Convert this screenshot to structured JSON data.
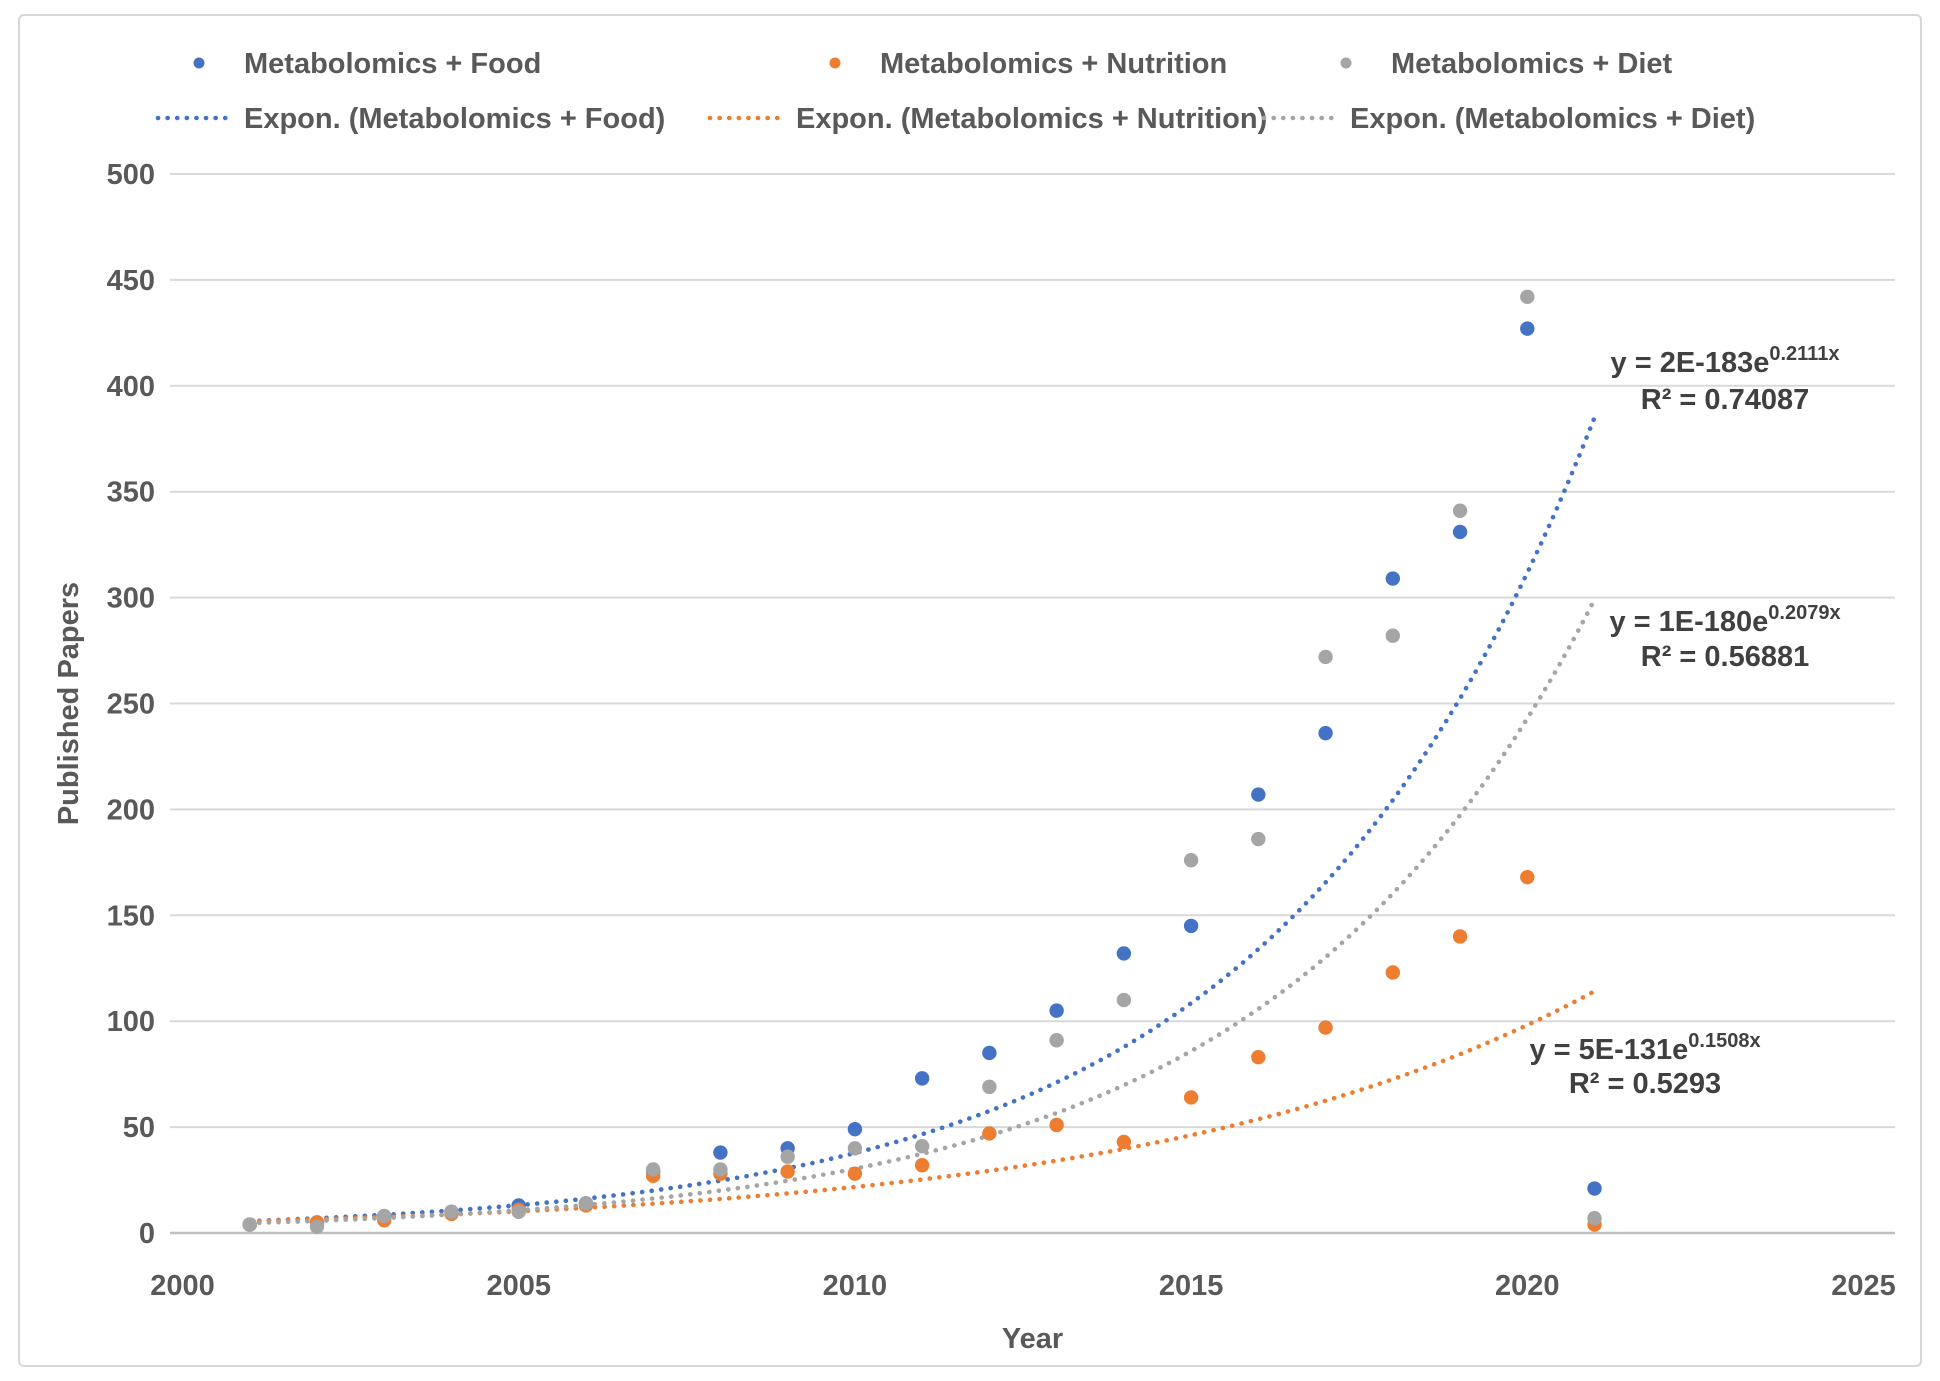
{
  "chart_data": {
    "type": "scatter",
    "title": "",
    "xlabel": "Year",
    "ylabel": "Published Papers",
    "xlim": [
      2000,
      2025
    ],
    "ylim": [
      0,
      500
    ],
    "x_ticks": [
      2000,
      2005,
      2010,
      2015,
      2020,
      2025
    ],
    "y_ticks": [
      0,
      50,
      100,
      150,
      200,
      250,
      300,
      350,
      400,
      450,
      500
    ],
    "grid": "horizontal",
    "legend_position": "top",
    "years": [
      2001,
      2002,
      2003,
      2004,
      2005,
      2006,
      2007,
      2008,
      2009,
      2010,
      2011,
      2012,
      2013,
      2014,
      2015,
      2016,
      2017,
      2018,
      2019,
      2020,
      2021
    ],
    "series": [
      {
        "name": "Metabolomics + Food",
        "color": "#4472C4",
        "values": [
          4,
          5,
          8,
          10,
          13,
          14,
          29,
          38,
          40,
          49,
          73,
          85,
          105,
          132,
          145,
          207,
          236,
          309,
          331,
          427,
          21
        ]
      },
      {
        "name": "Metabolomics + Nutrition",
        "color": "#ED7D31",
        "values": [
          4,
          5,
          6,
          9,
          11,
          13,
          27,
          28,
          29,
          28,
          32,
          47,
          51,
          43,
          64,
          83,
          97,
          123,
          140,
          168,
          4
        ]
      },
      {
        "name": "Metabolomics + Diet",
        "color": "#A5A5A5",
        "values": [
          4,
          3,
          8,
          10,
          10,
          14,
          30,
          30,
          36,
          40,
          41,
          69,
          91,
          110,
          176,
          186,
          272,
          282,
          341,
          442,
          7
        ]
      }
    ],
    "trendlines": [
      {
        "name": "Expon. (Metabolomics + Food)",
        "color": "#4472C4",
        "a": 2e-183,
        "b": 0.2111,
        "eq_base": "y = 2E-183e",
        "eq_exp": "0.2111x",
        "r2": "R² = 0.74087"
      },
      {
        "name": "Expon. (Metabolomics + Nutrition)",
        "color": "#ED7D31",
        "a": 5e-131,
        "b": 0.1508,
        "eq_base": "y = 5E-131e",
        "eq_exp": "0.1508x",
        "r2": "R² = 0.5293"
      },
      {
        "name": "Expon. (Metabolomics + Diet)",
        "color": "#A5A5A5",
        "a": 1e-180,
        "b": 0.2079,
        "eq_base": "y = 1E-180e",
        "eq_exp": "0.2079x",
        "r2": "R² = 0.56881"
      }
    ]
  }
}
